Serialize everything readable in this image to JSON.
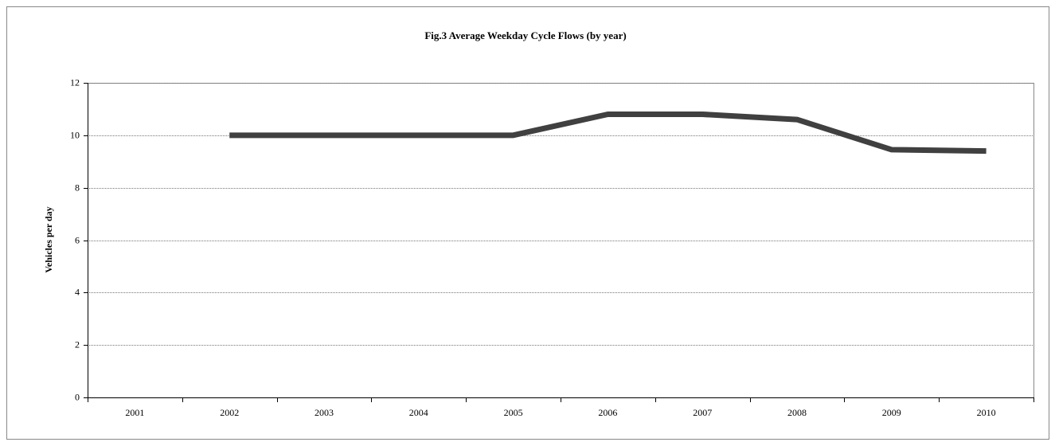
{
  "chart_data": {
    "type": "line",
    "title": "Fig.3  Average Weekday Cycle Flows (by year)",
    "y_label": "Vehicles per day",
    "categories": [
      "2001",
      "2002",
      "2003",
      "2004",
      "2005",
      "2006",
      "2007",
      "2008",
      "2009",
      "2010"
    ],
    "series": [
      {
        "name": "Average Weekday Cycle Flows",
        "color": "#404040",
        "values": [
          null,
          10,
          10,
          10,
          10,
          10.8,
          10.8,
          10.6,
          9.45,
          9.4
        ]
      }
    ],
    "ylim": [
      0,
      12
    ],
    "yticks": [
      0,
      2,
      4,
      6,
      8,
      10,
      12
    ],
    "grid": true
  }
}
